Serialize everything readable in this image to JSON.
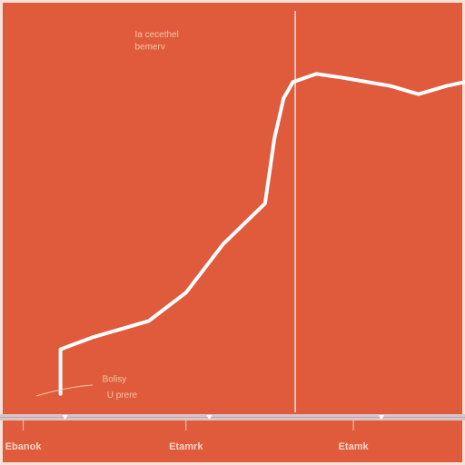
{
  "chart_data": {
    "type": "line",
    "background_color": "#e05a3c",
    "line_color": "#ffffff",
    "axis_color": "#f2d9cf",
    "annotation_color": "#f3c7a6",
    "grid": false,
    "ylim": [
      0,
      100
    ],
    "xlim": [
      0,
      100
    ],
    "series": [
      {
        "points": [
          {
            "x": 13,
            "y": 5
          },
          {
            "x": 13,
            "y": 16
          },
          {
            "x": 20,
            "y": 19
          },
          {
            "x": 32,
            "y": 23
          },
          {
            "x": 40,
            "y": 30
          },
          {
            "x": 48,
            "y": 42
          },
          {
            "x": 57,
            "y": 52
          },
          {
            "x": 59,
            "y": 68
          },
          {
            "x": 61,
            "y": 78
          },
          {
            "x": 63,
            "y": 82
          },
          {
            "x": 68,
            "y": 84
          },
          {
            "x": 74,
            "y": 83
          },
          {
            "x": 84,
            "y": 81
          },
          {
            "x": 90,
            "y": 79
          },
          {
            "x": 96,
            "y": 81
          },
          {
            "x": 100,
            "y": 82
          }
        ]
      }
    ],
    "vertical_marker": {
      "x": 63.5
    },
    "x_tick_labels": [
      {
        "text": "Ebanok",
        "x": 5
      },
      {
        "text": "Etamrk",
        "x": 40
      },
      {
        "text": "Etamk",
        "x": 76
      }
    ],
    "annotations": [
      {
        "text": "Ia cecethel",
        "x": 29,
        "y": 93
      },
      {
        "text": "bemerv",
        "x": 29,
        "y": 90
      },
      {
        "text": "Bolisy",
        "x": 22,
        "y": 8
      },
      {
        "text": "U prere",
        "x": 23,
        "y": 4
      }
    ]
  }
}
